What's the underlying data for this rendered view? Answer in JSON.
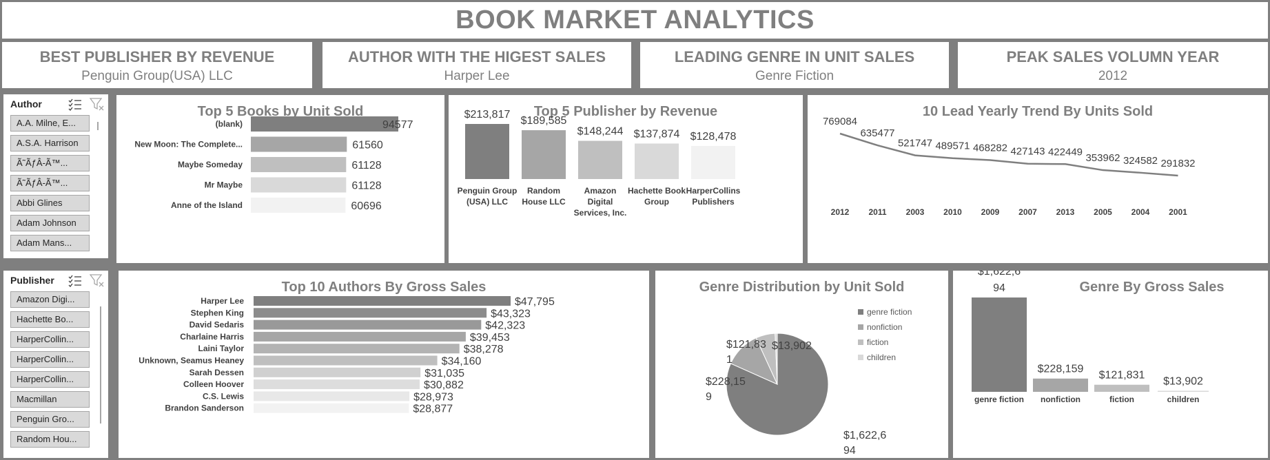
{
  "title": "BOOK MARKET ANALYTICS",
  "kpis": [
    {
      "label": "BEST PUBLISHER BY REVENUE",
      "value": "Penguin Group(USA) LLC"
    },
    {
      "label": "AUTHOR WITH THE HIGEST SALES",
      "value": "Harper Lee"
    },
    {
      "label": "LEADING GENRE IN UNIT SALES",
      "value": "Genre Fiction"
    },
    {
      "label": "PEAK SALES VOLUMN YEAR",
      "value": "2012"
    }
  ],
  "author_slicer": {
    "header": "Author",
    "items": [
      "A.A. Milne, E...",
      "A.S.A. Harrison",
      "Ã˜ÃƒÂ-Ã™...",
      "Ã˜ÃƒÂ-Ã™...",
      "Abbi Glines",
      "Adam Johnson",
      "Adam Mans..."
    ]
  },
  "publisher_slicer": {
    "header": "Publisher",
    "items": [
      "Amazon Digi...",
      "Hachette Bo...",
      "HarperCollin...",
      "HarperCollin...",
      "HarperCollin...",
      "Macmillan",
      "Penguin Gro...",
      "Random Hou..."
    ]
  },
  "colors": {
    "background": "#7f7f7f",
    "panel": "#ffffff",
    "title_text": "#7f7f7f",
    "shades": [
      "#7f7f7f",
      "#a6a6a6",
      "#bfbfbf",
      "#d9d9d9",
      "#f2f2f2"
    ]
  },
  "icons": {
    "multi_select": "multi-select-icon",
    "clear_filter": "clear-filter-icon"
  },
  "charts": {
    "top_books": {
      "title": "Top 5 Books by Unit Sold",
      "chart_data": {
        "type": "bar",
        "orientation": "horizontal",
        "categories": [
          "(blank)",
          "New Moon: The Complete...",
          "Maybe Someday",
          "Mr Maybe",
          "Anne of the Island"
        ],
        "values": [
          94577,
          61560,
          61128,
          61128,
          60696
        ],
        "labels": [
          "94577",
          "61560",
          "61128",
          "61128",
          "60696"
        ]
      }
    },
    "top_publishers": {
      "title": "Top 5 Publisher by Revenue",
      "chart_data": {
        "type": "bar",
        "categories": [
          [
            "Penguin Group",
            "(USA) LLC"
          ],
          [
            "Random",
            "House LLC"
          ],
          [
            "Amazon",
            "Digital",
            "Services,  Inc."
          ],
          [
            "Hachette Book",
            "Group"
          ],
          [
            "HarperCollins",
            "Publishers"
          ]
        ],
        "values": [
          213817,
          189585,
          148244,
          137874,
          128478
        ],
        "labels": [
          "$213,817",
          "$189,585",
          "$148,244",
          "$137,874",
          "$128,478"
        ]
      }
    },
    "yearly_trend": {
      "title": "10 Lead Yearly Trend By Units Sold",
      "chart_data": {
        "type": "line",
        "categories": [
          "2012",
          "2011",
          "2003",
          "2010",
          "2009",
          "2007",
          "2013",
          "2005",
          "2004",
          "2001"
        ],
        "values": [
          769084,
          635477,
          521747,
          489571,
          468282,
          427143,
          422449,
          353962,
          324582,
          291832
        ],
        "labels": [
          "769084",
          "635477",
          "521747",
          "489571",
          "468282",
          "427143",
          "422449",
          "353962",
          "324582",
          "291832"
        ]
      }
    },
    "top_authors": {
      "title": "Top 10 Authors By Gross Sales",
      "chart_data": {
        "type": "bar",
        "orientation": "horizontal",
        "categories": [
          "Harper Lee",
          "Stephen King",
          "David Sedaris",
          "Charlaine Harris",
          "Laini Taylor",
          "Unknown, Seamus Heaney",
          "Sarah Dessen",
          "Colleen Hoover",
          "C.S. Lewis",
          "Brandon Sanderson"
        ],
        "values": [
          47795,
          43323,
          42323,
          39453,
          38278,
          34160,
          31035,
          30882,
          28973,
          28877
        ],
        "labels": [
          "$47,795",
          "$43,323",
          "$42,323",
          "$39,453",
          "$38,278",
          "$34,160",
          "$31,035",
          "$30,882",
          "$28,973",
          "$28,877"
        ]
      }
    },
    "genre_pie": {
      "title": "Genre Distribution by Unit Sold",
      "chart_data": {
        "type": "pie",
        "categories": [
          "genre fiction",
          "nonfiction",
          "fiction",
          "children"
        ],
        "values": [
          1622694,
          228159,
          121831,
          13902
        ],
        "labels": [
          [
            "$1,622,6",
            "94"
          ],
          [
            "$228,15",
            "9"
          ],
          [
            "$121,83",
            "1"
          ],
          [
            "$13,902"
          ]
        ],
        "legend_position": "right"
      }
    },
    "genre_gross": {
      "title": "Genre By Gross Sales",
      "chart_data": {
        "type": "bar",
        "categories": [
          "genre fiction",
          "nonfiction",
          "fiction",
          "children"
        ],
        "values": [
          1622694,
          228159,
          121831,
          13902
        ],
        "labels": [
          [
            "$1,622,6",
            "94"
          ],
          [
            "$228,159"
          ],
          [
            "$121,831"
          ],
          [
            "$13,902"
          ]
        ]
      }
    }
  }
}
